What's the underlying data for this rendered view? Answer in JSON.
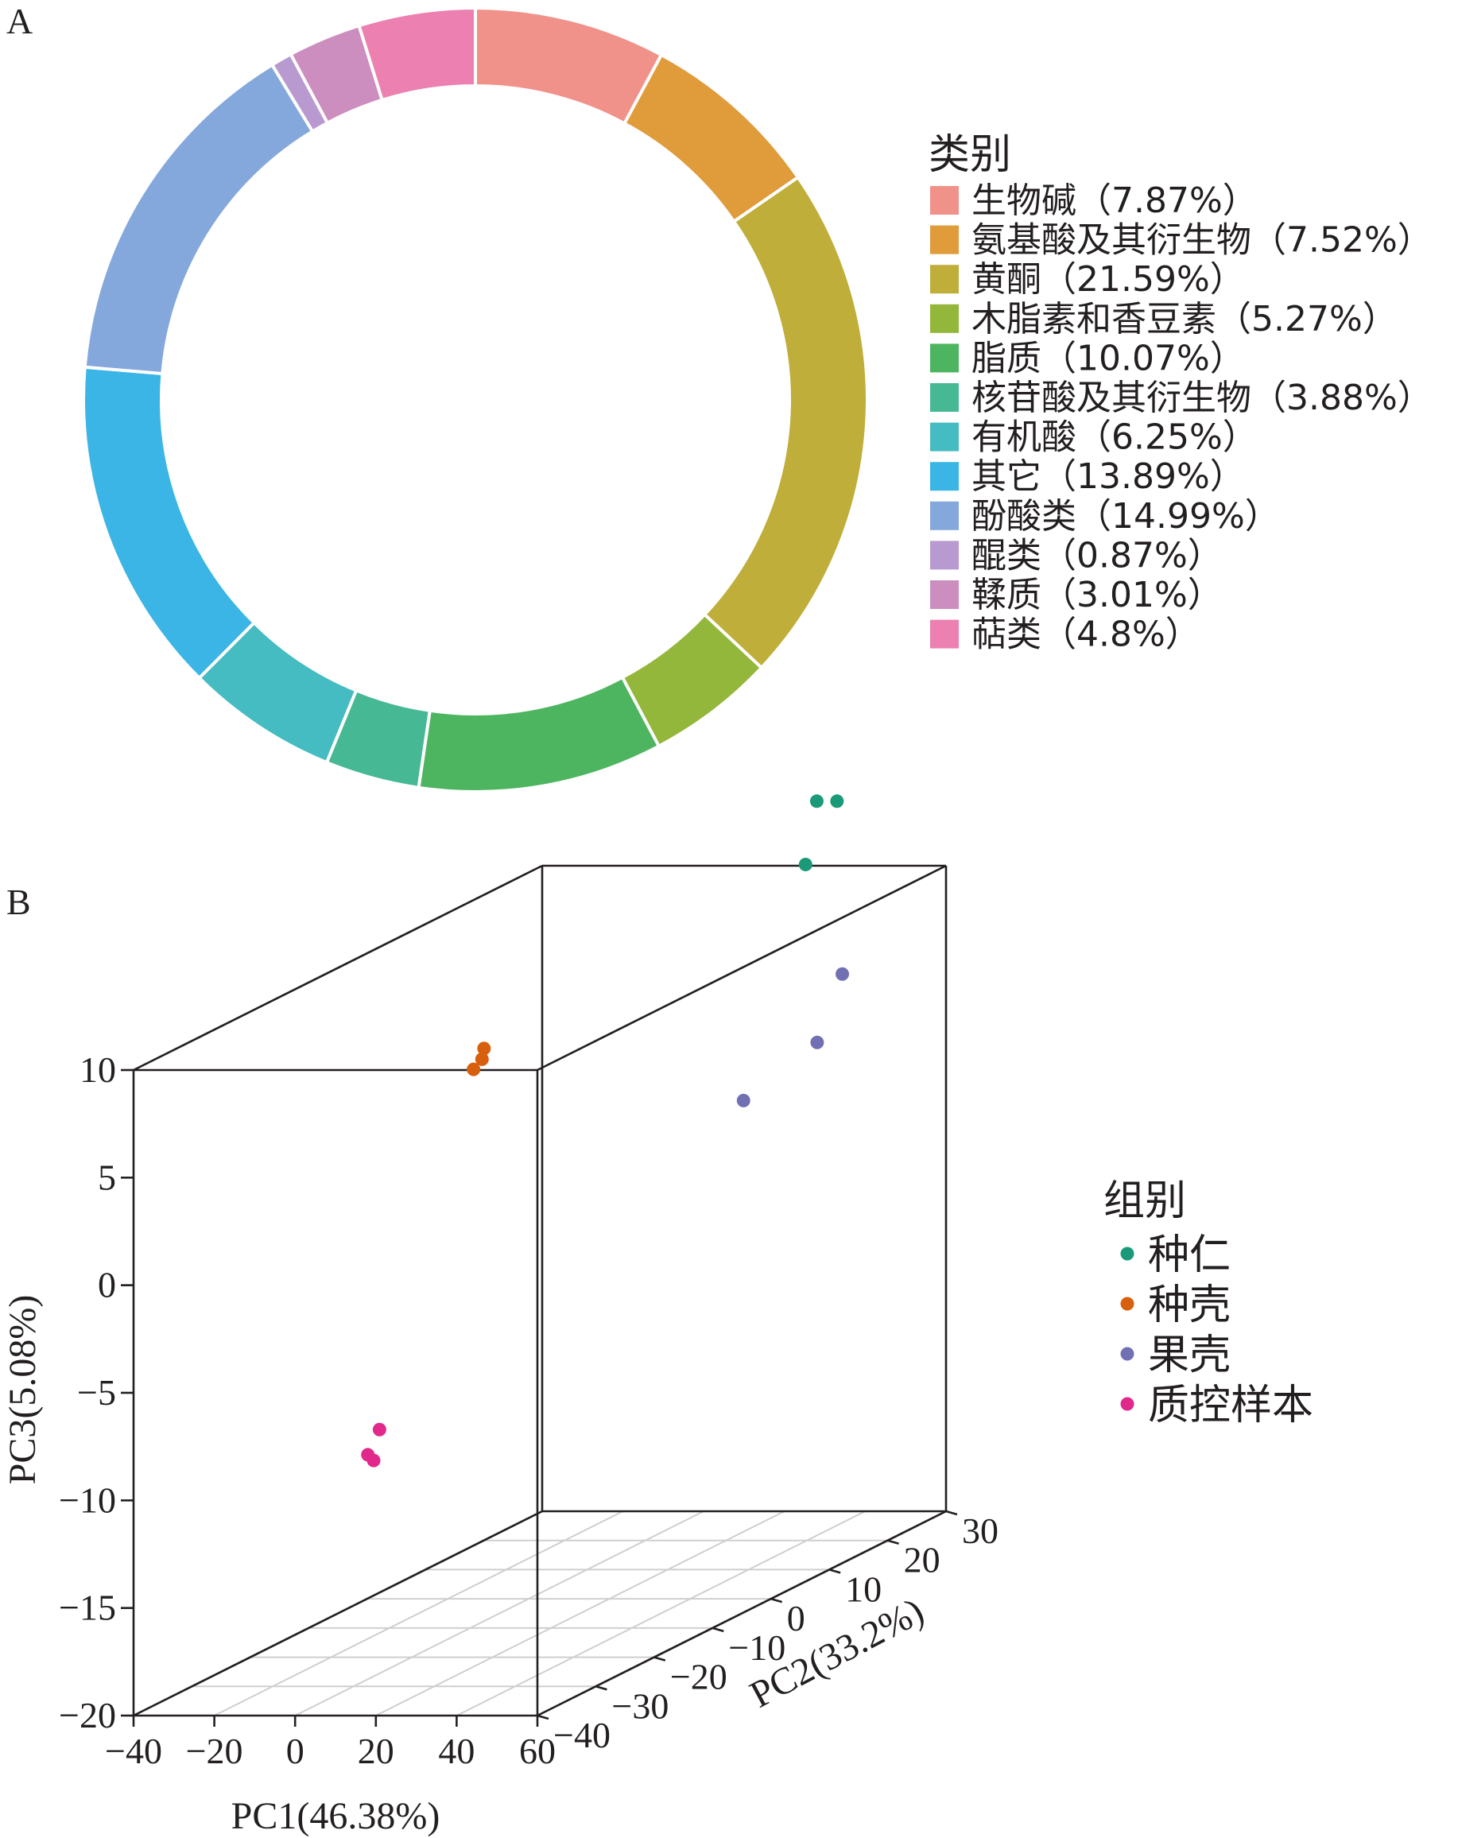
{
  "chart_data": [
    {
      "panel": "A",
      "type": "pie",
      "legend_title": "类别",
      "legend_position": "right",
      "slices": [
        {
          "label": "生物碱（7.87%）",
          "value": 7.87,
          "color": "#f0928a"
        },
        {
          "label": "氨基酸及其衍生物（7.52%）",
          "value": 7.52,
          "color": "#e09b3a"
        },
        {
          "label": "黄酮（21.59%）",
          "value": 21.59,
          "color": "#bfae3a"
        },
        {
          "label": "木脂素和香豆素（5.27%）",
          "value": 5.27,
          "color": "#93b73a"
        },
        {
          "label": "脂质（10.07%）",
          "value": 10.07,
          "color": "#4db560"
        },
        {
          "label": "核苷酸及其衍生物（3.88%）",
          "value": 3.88,
          "color": "#47b894"
        },
        {
          "label": "有机酸（6.25%）",
          "value": 6.25,
          "color": "#45bcc2"
        },
        {
          "label": "其它（13.89%）",
          "value": 13.89,
          "color": "#3bb5e5"
        },
        {
          "label": "酚酸类（14.99%）",
          "value": 14.99,
          "color": "#84a8dc"
        },
        {
          "label": "醌类（0.87%）",
          "value": 0.87,
          "color": "#b89ad0"
        },
        {
          "label": "鞣质（3.01%）",
          "value": 3.01,
          "color": "#cc8dbf"
        },
        {
          "label": "萜类（4.8%）",
          "value": 4.8,
          "color": "#ec80b0"
        }
      ]
    },
    {
      "panel": "B",
      "type": "scatter",
      "projection": "3d",
      "legend_title": "组别",
      "legend_position": "right",
      "xlabel": "PC1(46.38%)",
      "ylabel": "PC2(33.2%)",
      "zlabel": "PC3(5.08%)",
      "xlim": [
        -40,
        60
      ],
      "ylim": [
        -40,
        30
      ],
      "zlim": [
        -20,
        10
      ],
      "x_ticks": [
        "−40",
        "−20",
        "0",
        "20",
        "40",
        "60"
      ],
      "y_ticks": [
        "−40",
        "−30",
        "−20",
        "−10",
        "0",
        "10",
        "20",
        "30"
      ],
      "z_ticks": [
        "10",
        "5",
        "0",
        "−5",
        "−10",
        "−15",
        "−20"
      ],
      "series": [
        {
          "name": "种仁",
          "color": "#1a9a78",
          "points": [
            [
              28,
              30,
              13
            ],
            [
              33,
              30,
              13
            ],
            [
              31,
              26,
              10.6
            ]
          ]
        },
        {
          "name": "种壳",
          "color": "#d75f0e",
          "points": [
            [
              -38.5,
              19,
              3.0
            ],
            [
              -38.2,
              17,
              2.3
            ],
            [
              -39.0,
              19,
              2.5
            ]
          ]
        },
        {
          "name": "果壳",
          "color": "#7170b3",
          "points": [
            [
              56,
              15,
              7
            ],
            [
              57,
              10,
              4.5
            ],
            [
              59,
              -4,
              3.7
            ]
          ]
        },
        {
          "name": "质控样本",
          "color": "#e0298a",
          "points": [
            [
              5,
              -29,
              -8.2
            ],
            [
              5,
              -31,
              -9.1
            ],
            [
              5,
              -30,
              -9.5
            ]
          ]
        }
      ]
    }
  ]
}
